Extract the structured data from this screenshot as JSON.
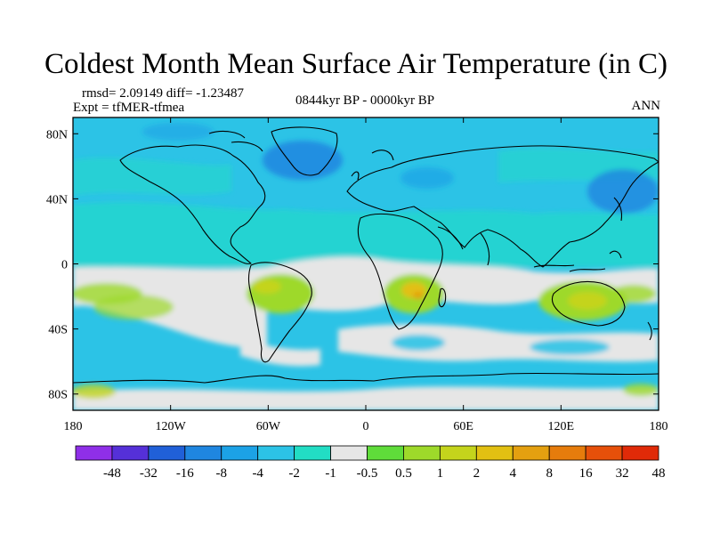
{
  "header": {
    "title": "Coldest Month Mean Surface Air Temperature (in C)",
    "stats": "rmsd= 2.09149 diff= -1.23487",
    "experiment": "Expt = tfMER-tfmea",
    "period": "0844kyr BP - 0000kyr BP",
    "season": "ANN"
  },
  "map": {
    "projection": "cylindrical-equidistant",
    "lon_range": [
      -180,
      180
    ],
    "lat_range": [
      -90,
      90
    ],
    "lat_ticks": [
      {
        "value": 80,
        "label": "80N"
      },
      {
        "value": 40,
        "label": "40N"
      },
      {
        "value": 0,
        "label": "0"
      },
      {
        "value": -40,
        "label": "40S"
      },
      {
        "value": -80,
        "label": "80S"
      }
    ],
    "lon_ticks": [
      {
        "value": -180,
        "label": "180"
      },
      {
        "value": -120,
        "label": "120W"
      },
      {
        "value": -60,
        "label": "60W"
      },
      {
        "value": 0,
        "label": "0"
      },
      {
        "value": 60,
        "label": "60E"
      },
      {
        "value": 120,
        "label": "120E"
      },
      {
        "value": 180,
        "label": "180"
      }
    ]
  },
  "colorbar": {
    "colors": [
      "#8f2fe8",
      "#5530d8",
      "#2060d8",
      "#1f86e0",
      "#1ca2e6",
      "#2cc3e6",
      "#22ddc4",
      "#e6e6e6",
      "#5fdc3a",
      "#9ed92a",
      "#c4d41c",
      "#e2c012",
      "#e4a010",
      "#e67c0c",
      "#e6500a",
      "#e02a08"
    ],
    "labels": [
      "-48",
      "-32",
      "-16",
      "-8",
      "-4",
      "-2",
      "-1",
      "-0.5",
      "0.5",
      "1",
      "2",
      "4",
      "8",
      "16",
      "32",
      "48"
    ]
  }
}
